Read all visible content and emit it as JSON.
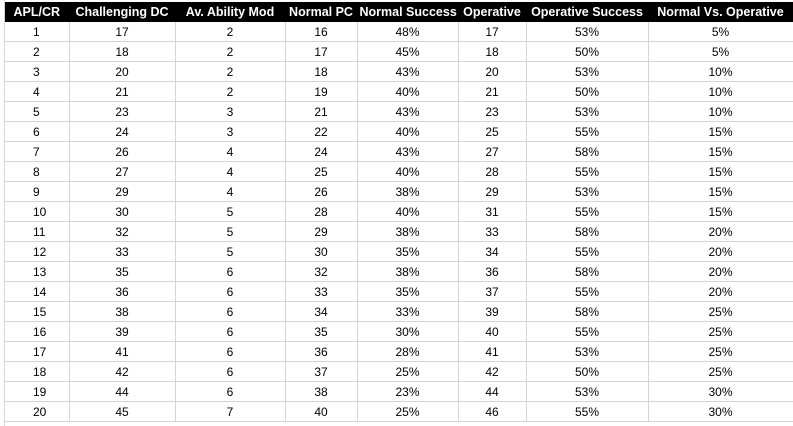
{
  "table": {
    "headers": [
      "APL/CR",
      "Challenging DC",
      "Av. Ability Mod",
      "Normal PC",
      "Normal Success",
      "Operative",
      "Operative Success",
      "Normal Vs. Operative"
    ],
    "rows": [
      [
        "1",
        "17",
        "2",
        "16",
        "48%",
        "17",
        "53%",
        "5%"
      ],
      [
        "2",
        "18",
        "2",
        "17",
        "45%",
        "18",
        "50%",
        "5%"
      ],
      [
        "3",
        "20",
        "2",
        "18",
        "43%",
        "20",
        "53%",
        "10%"
      ],
      [
        "4",
        "21",
        "2",
        "19",
        "40%",
        "21",
        "50%",
        "10%"
      ],
      [
        "5",
        "23",
        "3",
        "21",
        "43%",
        "23",
        "53%",
        "10%"
      ],
      [
        "6",
        "24",
        "3",
        "22",
        "40%",
        "25",
        "55%",
        "15%"
      ],
      [
        "7",
        "26",
        "4",
        "24",
        "43%",
        "27",
        "58%",
        "15%"
      ],
      [
        "8",
        "27",
        "4",
        "25",
        "40%",
        "28",
        "55%",
        "15%"
      ],
      [
        "9",
        "29",
        "4",
        "26",
        "38%",
        "29",
        "53%",
        "15%"
      ],
      [
        "10",
        "30",
        "5",
        "28",
        "40%",
        "31",
        "55%",
        "15%"
      ],
      [
        "11",
        "32",
        "5",
        "29",
        "38%",
        "33",
        "58%",
        "20%"
      ],
      [
        "12",
        "33",
        "5",
        "30",
        "35%",
        "34",
        "55%",
        "20%"
      ],
      [
        "13",
        "35",
        "6",
        "32",
        "38%",
        "36",
        "58%",
        "20%"
      ],
      [
        "14",
        "36",
        "6",
        "33",
        "35%",
        "37",
        "55%",
        "20%"
      ],
      [
        "15",
        "38",
        "6",
        "34",
        "33%",
        "39",
        "58%",
        "25%"
      ],
      [
        "16",
        "39",
        "6",
        "35",
        "30%",
        "40",
        "55%",
        "25%"
      ],
      [
        "17",
        "41",
        "6",
        "36",
        "28%",
        "41",
        "53%",
        "25%"
      ],
      [
        "18",
        "42",
        "6",
        "37",
        "25%",
        "42",
        "50%",
        "25%"
      ],
      [
        "19",
        "44",
        "6",
        "38",
        "23%",
        "44",
        "53%",
        "30%"
      ],
      [
        "20",
        "45",
        "7",
        "40",
        "25%",
        "46",
        "55%",
        "30%"
      ]
    ]
  }
}
